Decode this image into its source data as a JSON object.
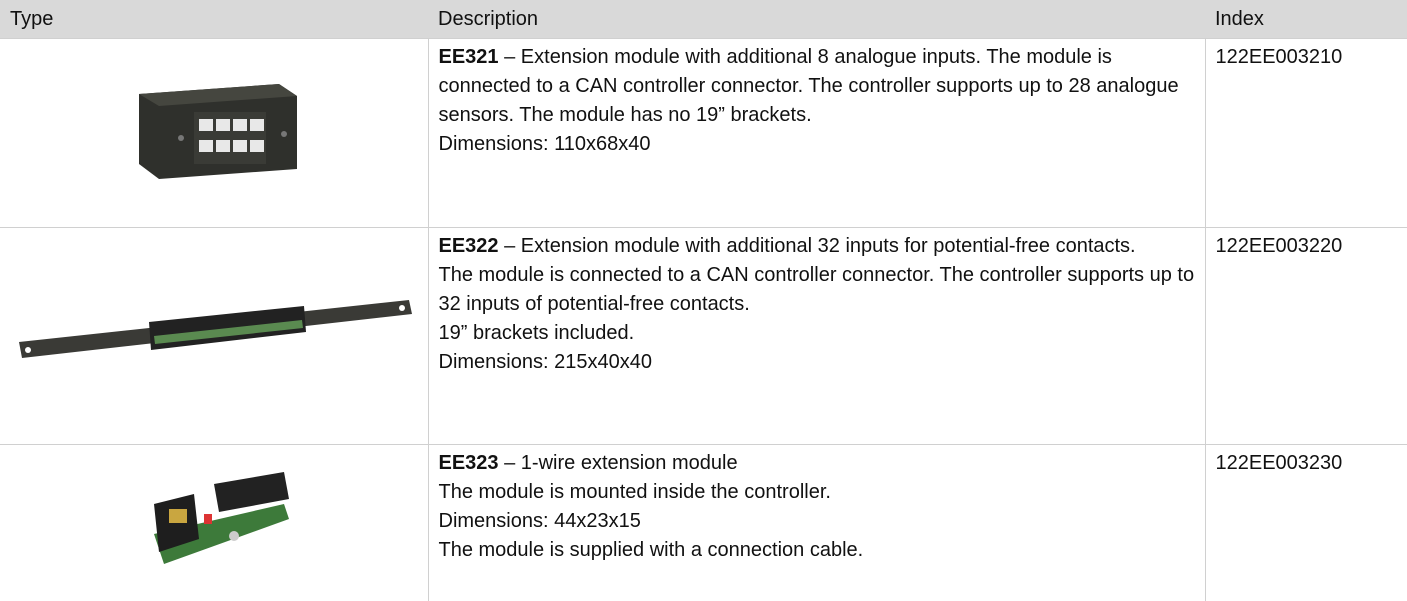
{
  "header": {
    "columns": [
      "Type",
      "Description",
      "Index"
    ]
  },
  "table": {
    "rows": [
      {
        "code": "EE321",
        "paragraphs": [
          "– Extension module with additional 8 analogue inputs. The module is connected to a CAN controller connector. The controller supports up to 28 analogue sensors. The module has no 19” brackets.",
          "Dimensions: 110x68x40"
        ],
        "index": "122EE003210"
      },
      {
        "code": "EE322",
        "paragraphs": [
          "– Extension module with additional 32 inputs for potential-free contacts.",
          "The module is connected to a CAN controller connector. The controller supports up to 32 inputs of potential-free contacts.",
          "19” brackets included.",
          "Dimensions: 215x40x40"
        ],
        "index": "122EE003220"
      },
      {
        "code": "EE323",
        "paragraphs": [
          "– 1-wire extension module",
          "The module is mounted inside the controller.",
          "Dimensions: 44x23x15",
          "The module is supplied with a connection cable."
        ],
        "index": "122EE003230"
      }
    ]
  }
}
